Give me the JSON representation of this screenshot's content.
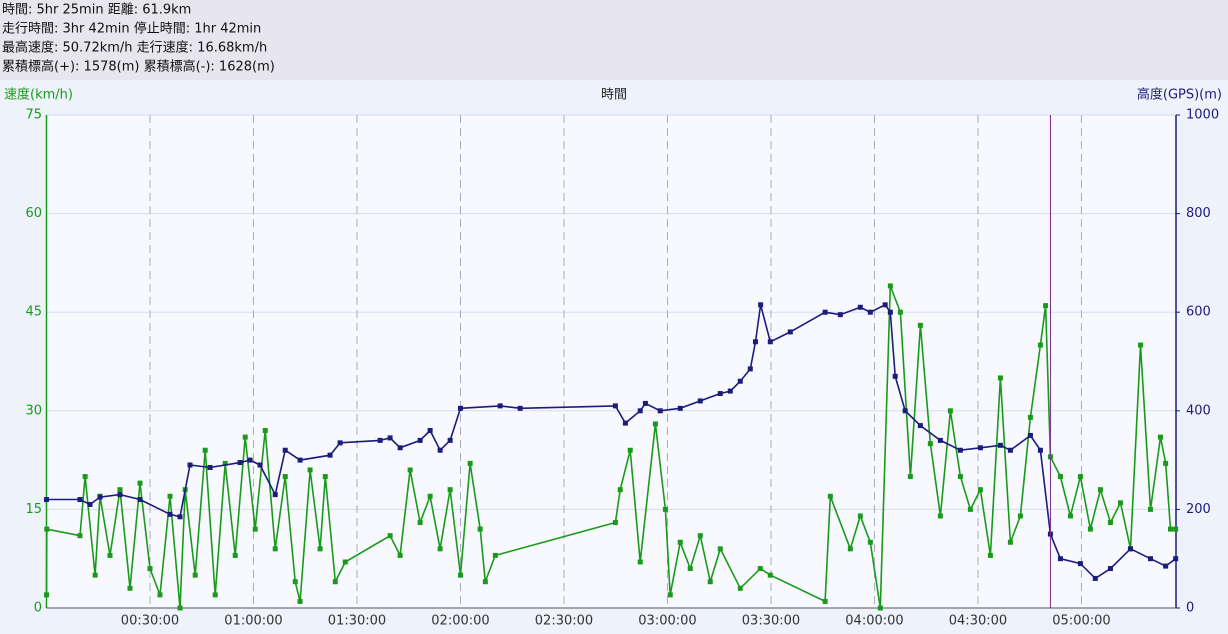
{
  "header": {
    "lines": [
      "時間: 5hr 25min 距離: 61.9km",
      "走行時間: 3hr 42min 停止時間: 1hr 42min",
      "最高速度: 50.72km/h 走行速度: 16.68km/h",
      "累積標高(+): 1578(m) 累積標高(-): 1628(m)"
    ]
  },
  "chart_data": {
    "type": "line",
    "xlabel": "時間",
    "ylabel": "速度(km/h)",
    "y2label": "高度(GPS)(m)",
    "xlim": [
      0,
      327.4
    ],
    "ylim": [
      0,
      75
    ],
    "y2lim": [
      0,
      1000
    ],
    "xticks": [
      {
        "value": 30,
        "label": "00:30:00"
      },
      {
        "value": 60,
        "label": "01:00:00"
      },
      {
        "value": 90,
        "label": "01:30:00"
      },
      {
        "value": 120,
        "label": "02:00:00"
      },
      {
        "value": 150,
        "label": "02:30:00"
      },
      {
        "value": 180,
        "label": "03:00:00"
      },
      {
        "value": 210,
        "label": "03:30:00"
      },
      {
        "value": 240,
        "label": "04:00:00"
      },
      {
        "value": 270,
        "label": "04:30:00"
      },
      {
        "value": 300,
        "label": "05:00:00"
      }
    ],
    "yticks": [
      0,
      15,
      30,
      45,
      60,
      75
    ],
    "y2ticks": [
      0,
      200,
      400,
      600,
      800,
      1000
    ],
    "grid": true,
    "cursor_x": 291,
    "series": [
      {
        "color": "#1a9a1a",
        "axis": "y",
        "x": [
          0,
          0.1,
          9.7,
          11.2,
          14.1,
          15.5,
          18.4,
          21.3,
          24.2,
          27.1,
          30,
          32.9,
          35.8,
          38.7,
          40.2,
          43.1,
          46,
          48.9,
          51.8,
          54.7,
          57.6,
          60.5,
          63.4,
          66.3,
          69.2,
          72.1,
          73.5,
          76.4,
          79.3,
          80.8,
          83.7,
          86.6,
          99.6,
          102.5,
          105.4,
          108.3,
          111.2,
          114.1,
          117,
          120,
          122.8,
          125.7,
          127.2,
          130.1,
          164.9,
          166.3,
          169.2,
          172.1,
          176.5,
          179.4,
          180.8,
          183.7,
          186.6,
          189.5,
          192.4,
          195.3,
          201.1,
          206.9,
          209.8,
          225.7,
          227.2,
          233,
          235.9,
          238.8,
          241.7,
          244.6,
          247.5,
          250.4,
          253.3,
          256.2,
          259.1,
          262,
          264.9,
          267.8,
          270.7,
          273.6,
          276.5,
          279.4,
          282.3,
          285.2,
          288.1,
          289.6,
          291,
          293.9,
          296.8,
          299.7,
          302.6,
          305.5,
          308.4,
          311.3,
          314.2,
          317.1,
          320,
          322.9,
          324.4,
          325.8,
          327.3
        ],
        "values": [
          2,
          12,
          11,
          20,
          5,
          17,
          8,
          18,
          3,
          19,
          6,
          2,
          17,
          0,
          18,
          5,
          24,
          2,
          22,
          8,
          26,
          12,
          27,
          9,
          20,
          4,
          1,
          21,
          9,
          20,
          4,
          7,
          11,
          8,
          21,
          13,
          17,
          9,
          18,
          5,
          22,
          12,
          4,
          8,
          13,
          18,
          24,
          7,
          28,
          15,
          2,
          10,
          6,
          11,
          4,
          9,
          3,
          6,
          5,
          1,
          17,
          9,
          14,
          10,
          0,
          49,
          45,
          20,
          43,
          25,
          14,
          30,
          20,
          15,
          18,
          8,
          35,
          10,
          14,
          29,
          40,
          46,
          23,
          20,
          14,
          20,
          12,
          18,
          13,
          16,
          9,
          40,
          15,
          26,
          22,
          12,
          12
        ]
      },
      {
        "color": "#1c1c7a",
        "axis": "y2",
        "x": [
          0,
          9.7,
          12.6,
          15.5,
          21.3,
          27.1,
          35.8,
          38.7,
          41.6,
          47.4,
          56.1,
          59,
          61.9,
          66.3,
          69.2,
          73.5,
          82.2,
          85.1,
          96.7,
          99.6,
          102.5,
          108.3,
          111.2,
          114.1,
          117,
          120,
          131.5,
          137.3,
          164.9,
          167.8,
          172.1,
          173.6,
          177.9,
          183.7,
          189.5,
          195.3,
          198.2,
          201.1,
          204,
          205.5,
          207,
          209.8,
          215.6,
          225.7,
          230.1,
          235.9,
          238.8,
          243.1,
          244.6,
          246,
          248.9,
          253.3,
          259.1,
          264.9,
          270.7,
          276.5,
          279.4,
          285.2,
          288.1,
          291,
          293.9,
          299.7,
          304,
          308.4,
          314.2,
          320,
          324.4,
          327.3
        ],
        "values": [
          220,
          220,
          210,
          225,
          230,
          220,
          190,
          185,
          290,
          285,
          295,
          300,
          290,
          230,
          320,
          300,
          310,
          335,
          340,
          345,
          325,
          340,
          360,
          320,
          340,
          405,
          410,
          405,
          410,
          375,
          400,
          415,
          400,
          405,
          420,
          435,
          440,
          460,
          485,
          540,
          615,
          540,
          560,
          600,
          595,
          610,
          600,
          615,
          600,
          470,
          400,
          370,
          340,
          320,
          325,
          330,
          320,
          350,
          320,
          150,
          100,
          90,
          60,
          80,
          120,
          100,
          85,
          100
        ]
      }
    ]
  }
}
